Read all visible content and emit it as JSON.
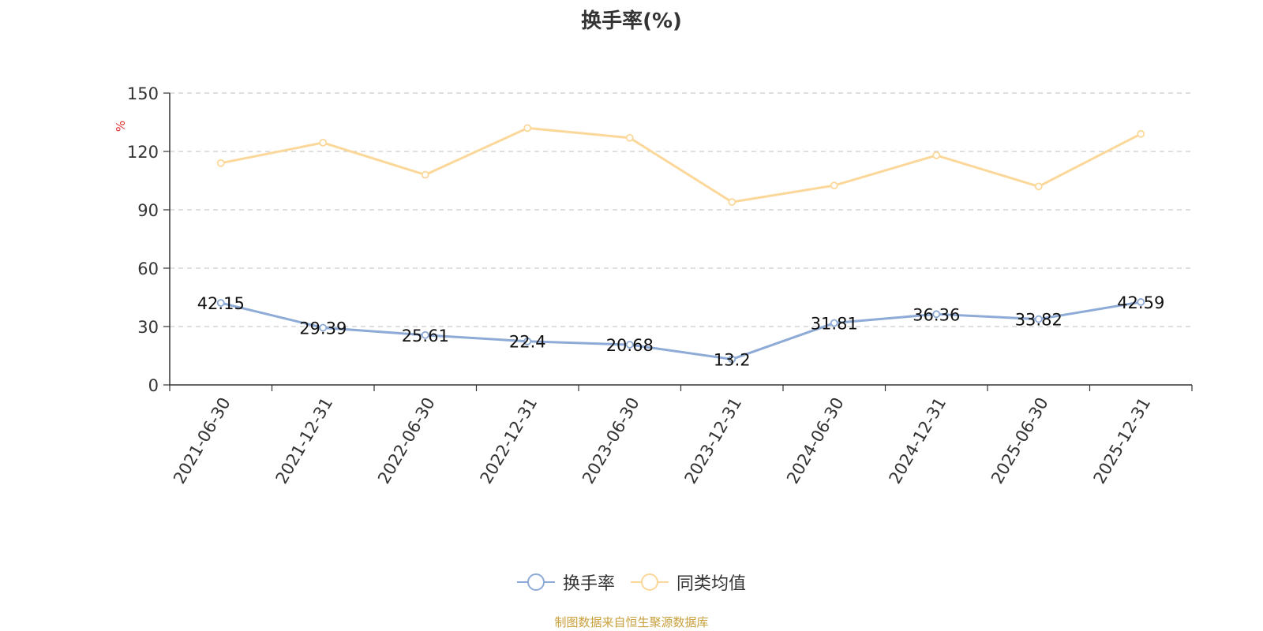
{
  "chart_data": {
    "type": "line",
    "title": "换手率(%)",
    "ylabel": "%",
    "xlabel": "",
    "categories": [
      "2021-06-30",
      "2021-12-31",
      "2022-06-30",
      "2022-12-31",
      "2023-06-30",
      "2023-12-31",
      "2024-06-30",
      "2024-12-31",
      "2025-06-30",
      "2025-12-31"
    ],
    "ylim": [
      0,
      150
    ],
    "yticks": [
      0,
      30,
      60,
      90,
      120,
      150
    ],
    "grid": true,
    "legend_position": "bottom",
    "series": [
      {
        "name": "换手率",
        "color": "#8eaad6",
        "values": [
          42.15,
          29.39,
          25.61,
          22.4,
          20.68,
          13.2,
          31.81,
          36.36,
          33.82,
          42.59
        ],
        "value_labels": [
          "42.15",
          "29.39",
          "25.61",
          "22.4",
          "20.68",
          "13.2",
          "31.81",
          "36.36",
          "33.82",
          "42.59"
        ]
      },
      {
        "name": "同类均值",
        "color": "#fbd89a",
        "values": [
          114,
          124.5,
          108,
          132,
          127,
          94,
          102.5,
          118,
          102,
          129
        ]
      }
    ]
  },
  "footer": "制图数据来自恒生聚源数据库",
  "colors": {
    "axis": "#333333",
    "grid": "#cccccc",
    "ylabel": "#e03030",
    "footer": "#c8a03c"
  }
}
